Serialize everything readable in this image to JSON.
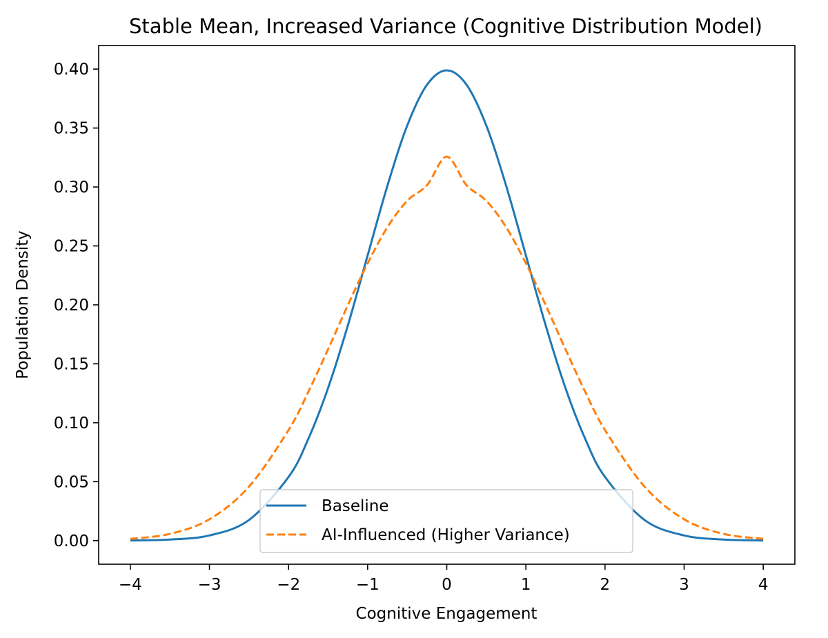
{
  "chart_data": {
    "type": "line",
    "title": "Stable Mean, Increased Variance (Cognitive Distribution Model)",
    "xlabel": "Cognitive Engagement",
    "ylabel": "Population Density",
    "xlim": [
      -4.4,
      4.4
    ],
    "ylim": [
      -0.02,
      0.42
    ],
    "x_ticks": [
      -4,
      -3,
      -2,
      -1,
      0,
      1,
      2,
      3,
      4
    ],
    "x_tick_labels": [
      "−4",
      "−3",
      "−2",
      "−1",
      "0",
      "1",
      "2",
      "3",
      "4"
    ],
    "y_ticks": [
      0.0,
      0.05,
      0.1,
      0.15,
      0.2,
      0.25,
      0.3,
      0.35,
      0.4
    ],
    "y_tick_labels": [
      "0.00",
      "0.05",
      "0.10",
      "0.15",
      "0.20",
      "0.25",
      "0.30",
      "0.35",
      "0.40"
    ],
    "grid": false,
    "legend_position": "lower center",
    "series": [
      {
        "name": "Baseline",
        "color": "#1f77b4",
        "style": "solid",
        "x": [
          -4.0,
          -3.5,
          -3.0,
          -2.5,
          -2.0,
          -1.75,
          -1.5,
          -1.25,
          -1.0,
          -0.75,
          -0.5,
          -0.25,
          0.0,
          0.25,
          0.5,
          0.75,
          1.0,
          1.25,
          1.5,
          1.75,
          2.0,
          2.5,
          3.0,
          3.5,
          4.0
        ],
        "y": [
          0.0001,
          0.0009,
          0.0044,
          0.0175,
          0.054,
          0.0863,
          0.1295,
          0.1826,
          0.242,
          0.3011,
          0.3521,
          0.3867,
          0.3989,
          0.3867,
          0.3521,
          0.3011,
          0.242,
          0.1826,
          0.1295,
          0.0863,
          0.054,
          0.0175,
          0.0044,
          0.0009,
          0.0001
        ]
      },
      {
        "name": "AI-Influenced (Higher Variance)",
        "color": "#ff7f0e",
        "style": "dashed",
        "x": [
          -4.0,
          -3.5,
          -3.0,
          -2.5,
          -2.0,
          -1.75,
          -1.5,
          -1.25,
          -1.0,
          -0.75,
          -0.5,
          -0.25,
          0.0,
          0.25,
          0.5,
          0.75,
          1.0,
          1.25,
          1.5,
          1.75,
          2.0,
          2.5,
          3.0,
          3.5,
          4.0
        ],
        "y": [
          0.0015,
          0.0057,
          0.0181,
          0.0458,
          0.0938,
          0.1262,
          0.1624,
          0.1998,
          0.2353,
          0.2659,
          0.2883,
          0.3015,
          0.3257,
          0.3015,
          0.2883,
          0.2659,
          0.2353,
          0.1998,
          0.1624,
          0.1262,
          0.0938,
          0.0458,
          0.0181,
          0.0057,
          0.0015
        ]
      }
    ]
  }
}
